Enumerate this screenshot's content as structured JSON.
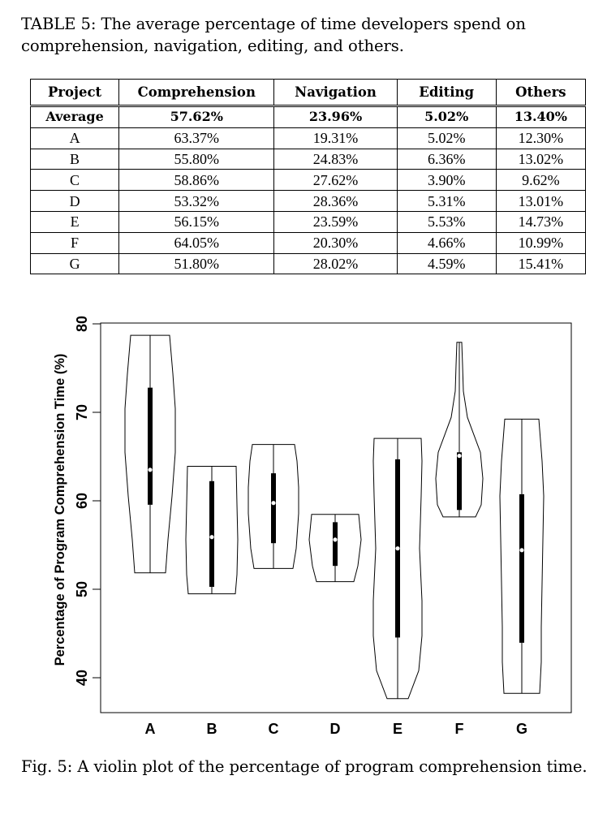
{
  "table": {
    "caption": "TABLE 5: The average percentage of time developers spend on comprehension, navigation, editing, and others.",
    "headers": [
      "Project",
      "Comprehension",
      "Navigation",
      "Editing",
      "Others"
    ],
    "rows": [
      [
        "Average",
        "57.62%",
        "23.96%",
        "5.02%",
        "13.40%"
      ],
      [
        "A",
        "63.37%",
        "19.31%",
        "5.02%",
        "12.30%"
      ],
      [
        "B",
        "55.80%",
        "24.83%",
        "6.36%",
        "13.02%"
      ],
      [
        "C",
        "58.86%",
        "27.62%",
        "3.90%",
        "9.62%"
      ],
      [
        "D",
        "53.32%",
        "28.36%",
        "5.31%",
        "13.01%"
      ],
      [
        "E",
        "56.15%",
        "23.59%",
        "5.53%",
        "14.73%"
      ],
      [
        "F",
        "64.05%",
        "20.30%",
        "4.66%",
        "10.99%"
      ],
      [
        "G",
        "51.80%",
        "28.02%",
        "4.59%",
        "15.41%"
      ]
    ]
  },
  "chart_data": {
    "type": "violin",
    "title": "",
    "xlabel": "",
    "ylabel": "Percentage of Program Comprehension Time (%)",
    "ylim": [
      35.2,
      79.8
    ],
    "yticks": [
      40,
      50,
      60,
      70,
      80
    ],
    "categories": [
      "A",
      "B",
      "C",
      "D",
      "E",
      "F",
      "G"
    ],
    "grid": false,
    "violins": [
      {
        "name": "A",
        "min": 51.2,
        "max": 78.4,
        "q1": 59.0,
        "median": 63.0,
        "q3": 72.4,
        "profile": [
          [
            51.2,
            19
          ],
          [
            55,
            22
          ],
          [
            60,
            27
          ],
          [
            65,
            31
          ],
          [
            70,
            31
          ],
          [
            74,
            28
          ],
          [
            78.4,
            24
          ]
        ]
      },
      {
        "name": "B",
        "min": 48.8,
        "max": 63.4,
        "q1": 49.6,
        "median": 55.3,
        "q3": 61.7,
        "profile": [
          [
            48.8,
            29
          ],
          [
            51,
            31
          ],
          [
            55,
            32
          ],
          [
            59,
            31
          ],
          [
            63.4,
            30
          ]
        ]
      },
      {
        "name": "C",
        "min": 51.7,
        "max": 65.9,
        "q1": 54.6,
        "median": 59.2,
        "q3": 62.6,
        "profile": [
          [
            51.7,
            24
          ],
          [
            54,
            28
          ],
          [
            58,
            31
          ],
          [
            61,
            31
          ],
          [
            64,
            29
          ],
          [
            65.9,
            26
          ]
        ]
      },
      {
        "name": "D",
        "min": 50.2,
        "max": 57.9,
        "q1": 52.0,
        "median": 55.0,
        "q3": 57.0,
        "profile": [
          [
            50.2,
            23
          ],
          [
            52,
            28
          ],
          [
            55,
            32
          ],
          [
            57.9,
            29
          ]
        ]
      },
      {
        "name": "E",
        "min": 36.8,
        "max": 66.6,
        "q1": 43.8,
        "median": 54.0,
        "q3": 64.2,
        "profile": [
          [
            36.8,
            13
          ],
          [
            40,
            26
          ],
          [
            44,
            30
          ],
          [
            48,
            30
          ],
          [
            54,
            27
          ],
          [
            60,
            29
          ],
          [
            64,
            30
          ],
          [
            66.6,
            29
          ]
        ]
      },
      {
        "name": "F",
        "min": 57.6,
        "max": 77.6,
        "q1": 58.4,
        "median": 64.6,
        "q3": 65.0,
        "profile": [
          [
            57.6,
            20
          ],
          [
            59,
            27
          ],
          [
            62,
            29
          ],
          [
            65,
            26
          ],
          [
            67,
            18
          ],
          [
            69,
            10
          ],
          [
            72,
            5
          ],
          [
            75,
            4
          ],
          [
            77.6,
            3
          ]
        ]
      },
      {
        "name": "G",
        "min": 37.4,
        "max": 68.8,
        "q1": 43.2,
        "median": 53.8,
        "q3": 60.2,
        "profile": [
          [
            37.4,
            22
          ],
          [
            41,
            24
          ],
          [
            45,
            24
          ],
          [
            50,
            25
          ],
          [
            55,
            26
          ],
          [
            60,
            27
          ],
          [
            64,
            25
          ],
          [
            68.8,
            21
          ]
        ]
      }
    ]
  },
  "figure": {
    "caption": "Fig. 5: A violin plot of the percentage of program comprehension time."
  }
}
